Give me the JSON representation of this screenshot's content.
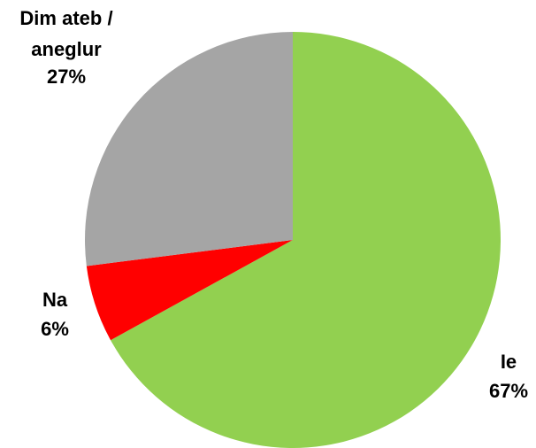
{
  "chart_data": {
    "type": "pie",
    "categories": [
      "Ie",
      "Na",
      "Dim ateb / aneglur"
    ],
    "values": [
      67,
      6,
      27
    ],
    "value_labels": [
      "67%",
      "6%",
      "27%"
    ],
    "colors": [
      "#92d050",
      "#ff0000",
      "#a5a5a5"
    ]
  }
}
